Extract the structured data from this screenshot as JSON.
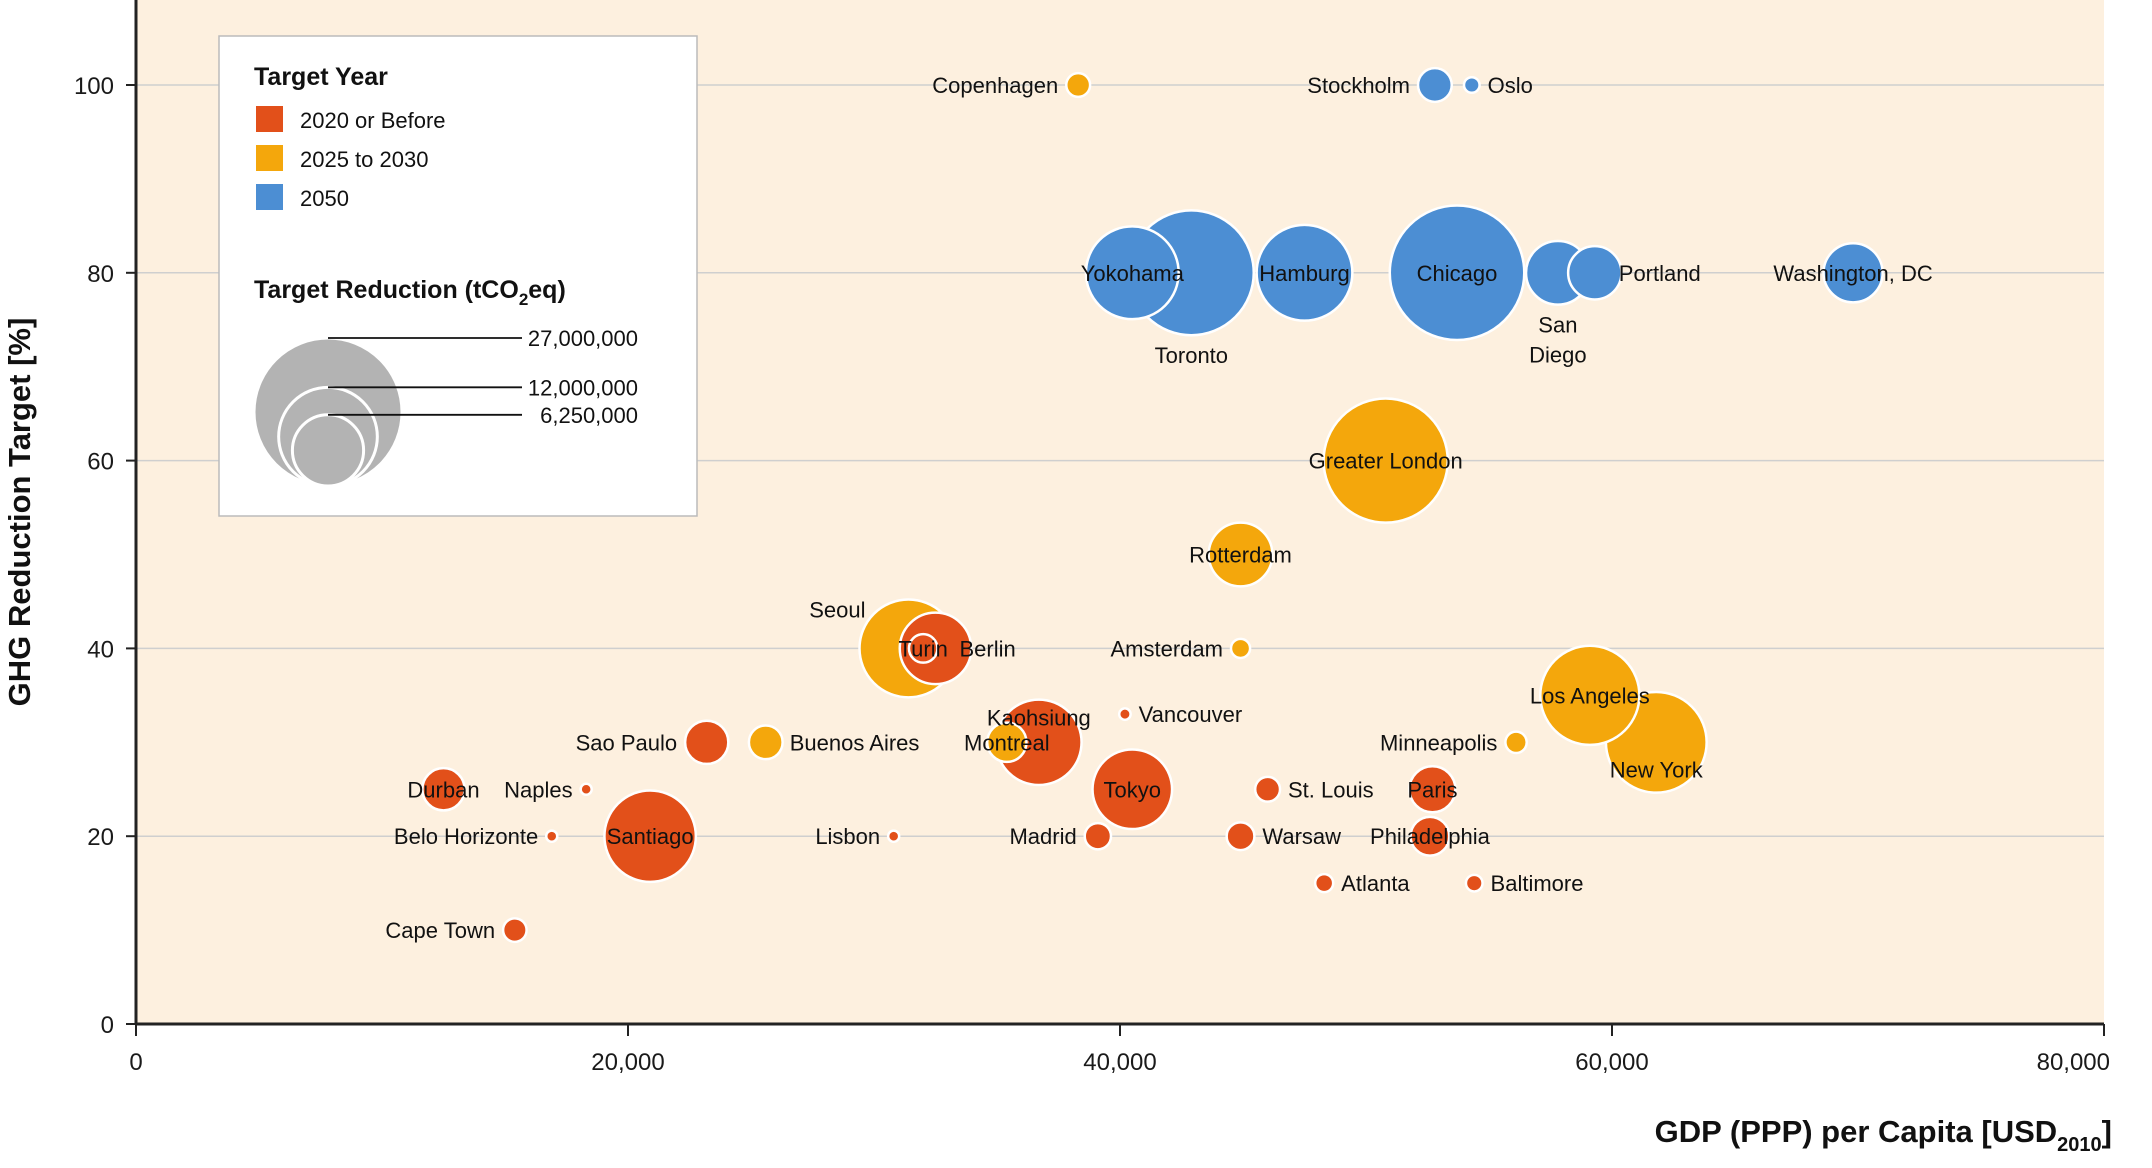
{
  "chart_data": {
    "type": "scatter",
    "xlabel": "GDP (PPP) per Capita [USD",
    "xlabel_sub": "2010",
    "xlabel_end": "]",
    "ylabel": "GHG Reduction Target [%]",
    "xlim": [
      0,
      80000
    ],
    "ylim": [
      0,
      107
    ],
    "x_ticks": [
      0,
      20000,
      40000,
      60000,
      80000
    ],
    "x_tick_labels": [
      "0",
      "20,000",
      "40,000",
      "60,000",
      "80,000"
    ],
    "y_ticks": [
      0,
      20,
      40,
      60,
      80,
      100
    ],
    "y_tick_labels": [
      "0",
      "20",
      "40",
      "60",
      "80",
      "100"
    ],
    "grid": "horizontal",
    "legend_position": "top-left",
    "colors": {
      "2020 or Before": "#E2501A",
      "2025 to 2030": "#F4A70C",
      "2050": "#4C8ED3",
      "background": "#FDF0DF",
      "legend_bubble": "#B3B3B3"
    },
    "legend": {
      "title": "Target Year",
      "entries": [
        "2020 or Before",
        "2025 to 2030",
        "2050"
      ],
      "size_title_pre": "Target Reduction (tCO",
      "size_title_sub": "2",
      "size_title_post": "eq)",
      "size_values": [
        27000000,
        12000000,
        6250000
      ],
      "size_labels": [
        "27,000,000",
        "12,000,000",
        "6,250,000"
      ]
    },
    "series": [
      {
        "name": "2020 or Before",
        "points": [
          {
            "city": "Durban",
            "x": 12500,
            "y": 25,
            "size": 2200000,
            "label_pos": "center",
            "label_color": "#111"
          },
          {
            "city": "Naples",
            "x": 18300,
            "y": 25,
            "size": 150000,
            "label_pos": "left",
            "label_color": "#111"
          },
          {
            "city": "Belo Horizonte",
            "x": 16900,
            "y": 20,
            "size": 150000,
            "label_pos": "left",
            "label_color": "#111"
          },
          {
            "city": "Cape Town",
            "x": 15400,
            "y": 10,
            "size": 680000,
            "label_pos": "left",
            "label_color": "#111"
          },
          {
            "city": "Santiago",
            "x": 20900,
            "y": 20,
            "size": 10300000,
            "label_pos": "center",
            "label_color": "#ffffff"
          },
          {
            "city": "Sao Paulo",
            "x": 23200,
            "y": 30,
            "size": 2300000,
            "label_pos": "left",
            "label_color": "#111"
          },
          {
            "city": "Lisbon",
            "x": 30800,
            "y": 20,
            "size": 150000,
            "label_pos": "left",
            "label_color": "#111"
          },
          {
            "city": "Berlin",
            "x": 32500,
            "y": 40,
            "size": 6300000,
            "label_pos": "right-inside",
            "label_color": "#111"
          },
          {
            "city": "Kaohsiung",
            "x": 36700,
            "y": 30,
            "size": 9000000,
            "label_pos": "above",
            "label_color": "#111"
          },
          {
            "city": "Vancouver",
            "x": 40200,
            "y": 33,
            "size": 160000,
            "label_pos": "right",
            "label_color": "#111"
          },
          {
            "city": "Tokyo",
            "x": 40500,
            "y": 25,
            "size": 7800000,
            "label_pos": "center",
            "label_color": "#ffffff"
          },
          {
            "city": "Madrid",
            "x": 39100,
            "y": 20,
            "size": 850000,
            "label_pos": "left",
            "label_color": "#111"
          },
          {
            "city": "Warsaw",
            "x": 44900,
            "y": 20,
            "size": 950000,
            "label_pos": "right",
            "label_color": "#111"
          },
          {
            "city": "St. Louis",
            "x": 46000,
            "y": 25,
            "size": 760000,
            "label_pos": "right",
            "label_color": "#111"
          },
          {
            "city": "Atlanta",
            "x": 48300,
            "y": 15,
            "size": 400000,
            "label_pos": "right",
            "label_color": "#111"
          },
          {
            "city": "Paris",
            "x": 52700,
            "y": 25,
            "size": 2600000,
            "label_pos": "center",
            "label_color": "#ffffff"
          },
          {
            "city": "Philadelphia",
            "x": 52600,
            "y": 20,
            "size": 1850000,
            "label_pos": "center",
            "label_color": "#111"
          },
          {
            "city": "Baltimore",
            "x": 54400,
            "y": 15,
            "size": 340000,
            "label_pos": "right",
            "label_color": "#111"
          },
          {
            "city": "Turin",
            "x": 32000,
            "y": 40,
            "size": 1000000,
            "label_pos": "center",
            "label_color": "#111"
          }
        ]
      },
      {
        "name": "2025 to 2030",
        "points": [
          {
            "city": "Copenhagen",
            "x": 38300,
            "y": 100,
            "size": 700000,
            "label_pos": "left",
            "label_color": "#111"
          },
          {
            "city": "Buenos Aires",
            "x": 25600,
            "y": 30,
            "size": 1400000,
            "label_pos": "right-inside",
            "label_color": "#111"
          },
          {
            "city": "Seoul",
            "x": 31400,
            "y": 40,
            "size": 11800000,
            "label_pos": "above-left",
            "label_color": "#111"
          },
          {
            "city": "Montreal",
            "x": 35400,
            "y": 30,
            "size": 1900000,
            "label_pos": "center",
            "label_color": "#111"
          },
          {
            "city": "Amsterdam",
            "x": 44900,
            "y": 40,
            "size": 450000,
            "label_pos": "left",
            "label_color": "#111"
          },
          {
            "city": "Rotterdam",
            "x": 44900,
            "y": 50,
            "size": 5000000,
            "label_pos": "center",
            "label_color": "#111"
          },
          {
            "city": "Greater London",
            "x": 50800,
            "y": 60,
            "size": 19000000,
            "label_pos": "center",
            "label_color": "#111"
          },
          {
            "city": "Minneapolis",
            "x": 56100,
            "y": 30,
            "size": 560000,
            "label_pos": "left",
            "label_color": "#111"
          },
          {
            "city": "New York",
            "x": 61800,
            "y": 30,
            "size": 12500000,
            "label_pos": "below-inside",
            "label_color": "#111"
          },
          {
            "city": "Los Angeles",
            "x": 59100,
            "y": 35,
            "size": 12100000,
            "label_pos": "center",
            "label_color": "#111"
          }
        ]
      },
      {
        "name": "2050",
        "points": [
          {
            "city": "Stockholm",
            "x": 52800,
            "y": 100,
            "size": 1400000,
            "label_pos": "left",
            "label_color": "#111"
          },
          {
            "city": "Oslo",
            "x": 54300,
            "y": 100,
            "size": 300000,
            "label_pos": "right",
            "label_color": "#111"
          },
          {
            "city": "Toronto",
            "x": 42900,
            "y": 80,
            "size": 19200000,
            "label_pos": "below",
            "label_color": "#111"
          },
          {
            "city": "Yokohama",
            "x": 40500,
            "y": 80,
            "size": 10600000,
            "label_pos": "center",
            "label_color": "#ffffff"
          },
          {
            "city": "Hamburg",
            "x": 47500,
            "y": 80,
            "size": 11300000,
            "label_pos": "center",
            "label_color": "#ffffff"
          },
          {
            "city": "Chicago",
            "x": 53700,
            "y": 80,
            "size": 22300000,
            "label_pos": "center",
            "label_color": "#ffffff"
          },
          {
            "city": "San\nDiego",
            "x": 57800,
            "y": 80,
            "size": 5000000,
            "label_pos": "below",
            "label_color": "#111"
          },
          {
            "city": "Portland",
            "x": 59300,
            "y": 80,
            "size": 3500000,
            "label_pos": "right-inside",
            "label_color": "#111"
          },
          {
            "city": "Washington, DC",
            "x": 69800,
            "y": 80,
            "size": 4300000,
            "label_pos": "center",
            "label_color": "#111"
          }
        ]
      }
    ]
  }
}
